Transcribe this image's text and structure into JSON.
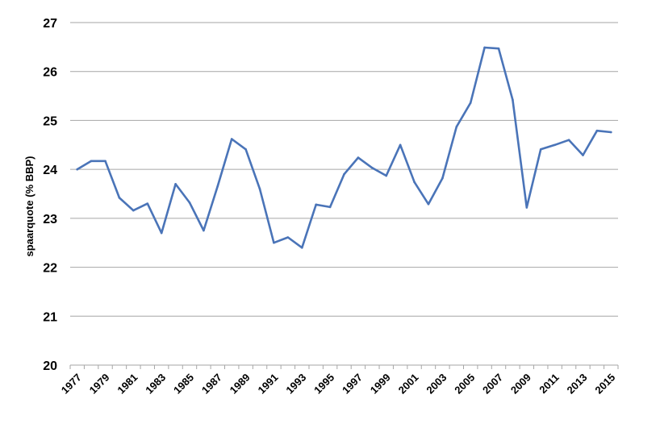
{
  "chart_data": {
    "type": "line",
    "title": "",
    "xlabel": "",
    "ylabel": "spaarquote (% BBP)",
    "ylim": [
      20,
      27
    ],
    "yticks": [
      "20",
      "21",
      "22",
      "23",
      "24",
      "25",
      "26",
      "27"
    ],
    "x_tick_labels": [
      "1977",
      "1979",
      "1981",
      "1983",
      "1985",
      "1987",
      "1989",
      "1991",
      "1993",
      "1995",
      "1997",
      "1999",
      "2001",
      "2003",
      "2005",
      "2007",
      "2009",
      "2011",
      "2013",
      "2015"
    ],
    "x": [
      1977,
      1978,
      1979,
      1980,
      1981,
      1982,
      1983,
      1984,
      1985,
      1986,
      1987,
      1988,
      1989,
      1990,
      1991,
      1992,
      1993,
      1994,
      1995,
      1996,
      1997,
      1998,
      1999,
      2000,
      2001,
      2002,
      2003,
      2004,
      2005,
      2006,
      2007,
      2008,
      2009,
      2010,
      2011,
      2012,
      2013,
      2014,
      2015
    ],
    "series": [
      {
        "values": [
          24.0,
          24.17,
          24.17,
          23.42,
          23.16,
          23.3,
          22.7,
          23.7,
          23.32,
          22.75,
          23.66,
          24.62,
          24.41,
          23.6,
          22.5,
          22.61,
          22.4,
          23.28,
          23.23,
          23.9,
          24.24,
          24.03,
          23.87,
          24.5,
          23.74,
          23.29,
          23.82,
          24.87,
          25.36,
          26.49,
          26.47,
          25.42,
          23.22,
          24.41,
          24.5,
          24.6,
          24.29,
          24.79,
          24.76
        ],
        "color": "#4a74b8"
      }
    ],
    "grid": true,
    "legend": "none"
  }
}
